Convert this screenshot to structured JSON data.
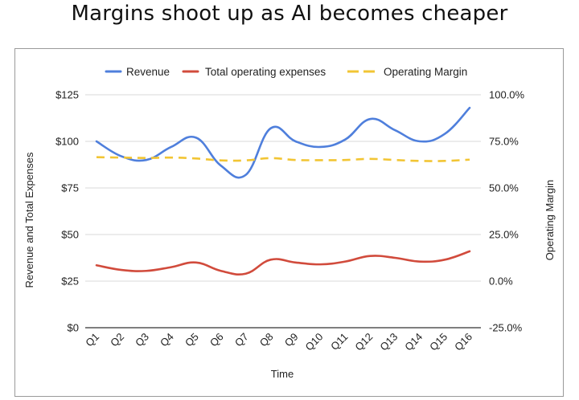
{
  "chart_data": {
    "type": "line",
    "title": "Margins shoot up as AI becomes cheaper",
    "xlabel": "Time",
    "ylabel_left": "Revenue and Total Expenses",
    "ylabel_right": "Operating Margin",
    "categories": [
      "Q1",
      "Q2",
      "Q3",
      "Q4",
      "Q5",
      "Q6",
      "Q7",
      "Q8",
      "Q9",
      "Q10",
      "Q11",
      "Q12",
      "Q13",
      "Q14",
      "Q15",
      "Q16"
    ],
    "y_left": {
      "min": 0,
      "max": 125,
      "ticks": [
        0,
        25,
        50,
        75,
        100,
        125
      ],
      "tick_labels": [
        "$0",
        "$25",
        "$50",
        "$75",
        "$100",
        "$125"
      ]
    },
    "y_right": {
      "min": -25,
      "max": 100,
      "ticks": [
        -25,
        0,
        25,
        50,
        75,
        100
      ],
      "tick_labels": [
        "-25.0%",
        "0.0%",
        "25.0%",
        "50.0%",
        "75.0%",
        "100.0%"
      ]
    },
    "series": [
      {
        "name": "Revenue",
        "axis": "left",
        "color": "#4f7fdc",
        "style": "solid",
        "values": [
          100,
          92,
          90,
          97,
          102,
          87,
          82,
          107,
          100,
          97,
          101,
          112,
          106,
          100,
          104,
          118
        ]
      },
      {
        "name": "Total operating expenses",
        "axis": "left",
        "color": "#d14b3c",
        "style": "solid",
        "values": [
          33.5,
          31,
          30.5,
          32.5,
          35,
          30.5,
          29,
          36.5,
          35,
          34,
          35.5,
          38.5,
          37.5,
          35.5,
          36.5,
          41
        ]
      },
      {
        "name": "Operating Margin",
        "axis": "right",
        "color": "#f2c534",
        "style": "dashed",
        "values": [
          66.5,
          66.3,
          66.1,
          66.3,
          65.8,
          64.8,
          64.8,
          66.0,
          65.0,
          64.9,
          65.0,
          65.6,
          65.0,
          64.5,
          64.5,
          65.2
        ]
      }
    ],
    "legend_position": "top",
    "grid": "horizontal"
  }
}
